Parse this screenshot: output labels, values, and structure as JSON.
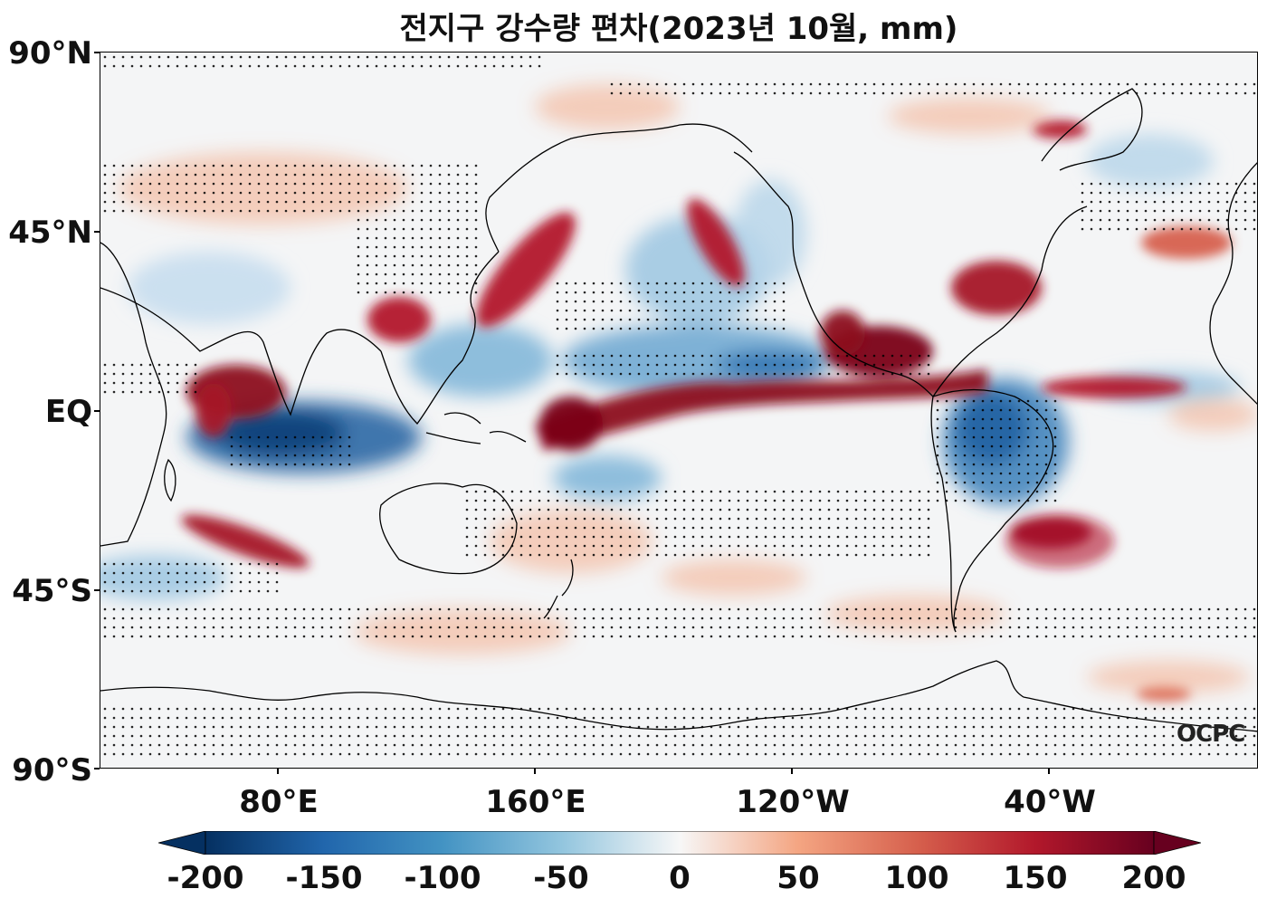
{
  "title": "전지구 강수량 편차(2023년 10월, mm)",
  "watermark": "OCPC",
  "y_axis_labels": [
    "90°N",
    "45°N",
    "EQ",
    "45°S",
    "90°S"
  ],
  "x_axis_labels": [
    "80°E",
    "160°E",
    "120°W",
    "40°W"
  ],
  "colorbar": {
    "colormap": "RdBu_r",
    "min": -200,
    "max": 200,
    "extend": "both",
    "tick_labels": [
      "-200",
      "-150",
      "-100",
      "-50",
      "0",
      "50",
      "100",
      "150",
      "200"
    ],
    "colors": {
      "low": "#053061",
      "mid": "#f7f7f7",
      "high": "#67001f"
    }
  },
  "map": {
    "projection": "PlateCarree",
    "lon_range": [
      25,
      385
    ],
    "lat_range": [
      -90,
      90
    ],
    "stippling": "significance dots"
  }
}
